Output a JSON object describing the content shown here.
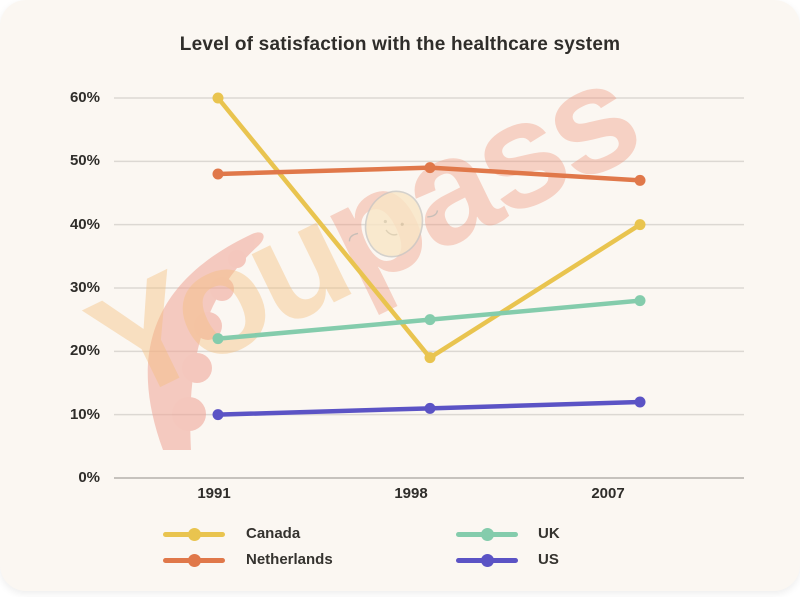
{
  "title": "Level of satisfaction with the healthcare system",
  "watermark": {
    "text": "Youpass"
  },
  "chart_data": {
    "type": "line",
    "title": "Level of satisfaction with the healthcare system",
    "x": [
      "1991",
      "1998",
      "2007"
    ],
    "series": [
      {
        "name": "Canada",
        "color": "#e9c44f",
        "values": [
          60,
          19,
          40
        ]
      },
      {
        "name": "Netherlands",
        "color": "#e0784a",
        "values": [
          48,
          49,
          47
        ]
      },
      {
        "name": "UK",
        "color": "#84ccac",
        "values": [
          22,
          25,
          28
        ]
      },
      {
        "name": "US",
        "color": "#5b53c5",
        "values": [
          10,
          11,
          12
        ]
      }
    ],
    "xlabel": "",
    "ylabel": "",
    "ylim": [
      0,
      60
    ],
    "y_tick_step": 10,
    "y_tick_suffix": "%",
    "grid": true,
    "legend_position": "bottom-two-columns",
    "legend_order": [
      "Canada",
      "Netherlands",
      "UK",
      "US"
    ]
  },
  "colors": {
    "card_background": "#fbf7f2",
    "gridline": "#dcd8d3",
    "axis_line": "#c6c2bd",
    "text": "#2f2d2a",
    "watermark_orange": "rgba(243,190,125,0.42)",
    "watermark_pink": "rgba(240,148,122,0.38)",
    "pea_pod": "#ee9e8f"
  }
}
